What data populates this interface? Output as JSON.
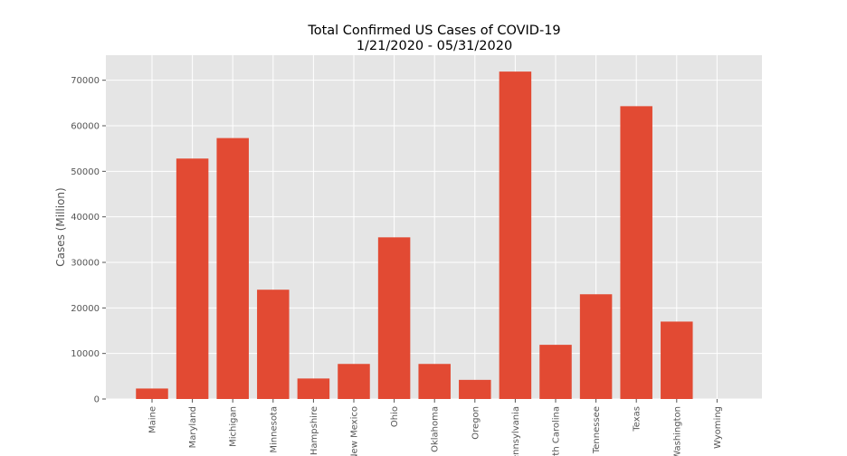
{
  "chart_data": {
    "type": "bar",
    "title": "Total Confirmed US Cases of COVID-19",
    "subtitle": "1/21/2020 - 05/31/2020",
    "xlabel": "",
    "ylabel": "Cases (Million)",
    "ylim": [
      0,
      75500
    ],
    "yticks": [
      0,
      10000,
      20000,
      30000,
      40000,
      50000,
      60000,
      70000
    ],
    "grid": true,
    "categories": [
      "Maine",
      "Maryland",
      "Michigan",
      "Minnesota",
      "New Hampshire",
      "New Mexico",
      "Ohio",
      "Oklahoma",
      "Oregon",
      "Pennsylvania",
      "North Carolina",
      "Tennessee",
      "Texas",
      "Washington",
      "Wyoming"
    ],
    "values": [
      2300,
      52800,
      57300,
      24000,
      4500,
      7700,
      35500,
      7700,
      4200,
      71900,
      11900,
      23000,
      64300,
      17000,
      0
    ],
    "colors": {
      "bar": "#E24A33",
      "plot_bg": "#E5E5E5",
      "grid": "#FFFFFF",
      "tick_text": "#555555"
    }
  }
}
